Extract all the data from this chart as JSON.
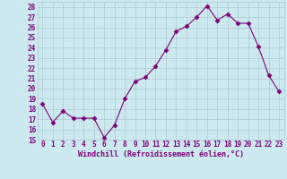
{
  "x": [
    0,
    1,
    2,
    3,
    4,
    5,
    6,
    7,
    8,
    9,
    10,
    11,
    12,
    13,
    14,
    15,
    16,
    17,
    18,
    19,
    20,
    21,
    22,
    23
  ],
  "y": [
    18.5,
    16.7,
    17.8,
    17.1,
    17.1,
    17.1,
    15.2,
    16.4,
    19.0,
    20.7,
    21.1,
    22.2,
    23.8,
    25.6,
    26.1,
    27.0,
    28.1,
    26.7,
    27.3,
    26.4,
    26.4,
    24.1,
    21.3,
    19.7
  ],
  "line_color": "#7b0079",
  "marker": "D",
  "marker_size": 2.5,
  "bg_color": "#cce9f0",
  "grid_color": "#b0c8d0",
  "xlabel": "Windchill (Refroidissement éolien,°C)",
  "ylim": [
    15,
    28.5
  ],
  "xlim": [
    -0.5,
    23.5
  ],
  "yticks": [
    15,
    16,
    17,
    18,
    19,
    20,
    21,
    22,
    23,
    24,
    25,
    26,
    27,
    28
  ],
  "xticks": [
    0,
    1,
    2,
    3,
    4,
    5,
    6,
    7,
    8,
    9,
    10,
    11,
    12,
    13,
    14,
    15,
    16,
    17,
    18,
    19,
    20,
    21,
    22,
    23
  ],
  "tick_color": "#7b0079",
  "label_color": "#7b0079",
  "label_fontsize": 6,
  "tick_fontsize": 5.5
}
